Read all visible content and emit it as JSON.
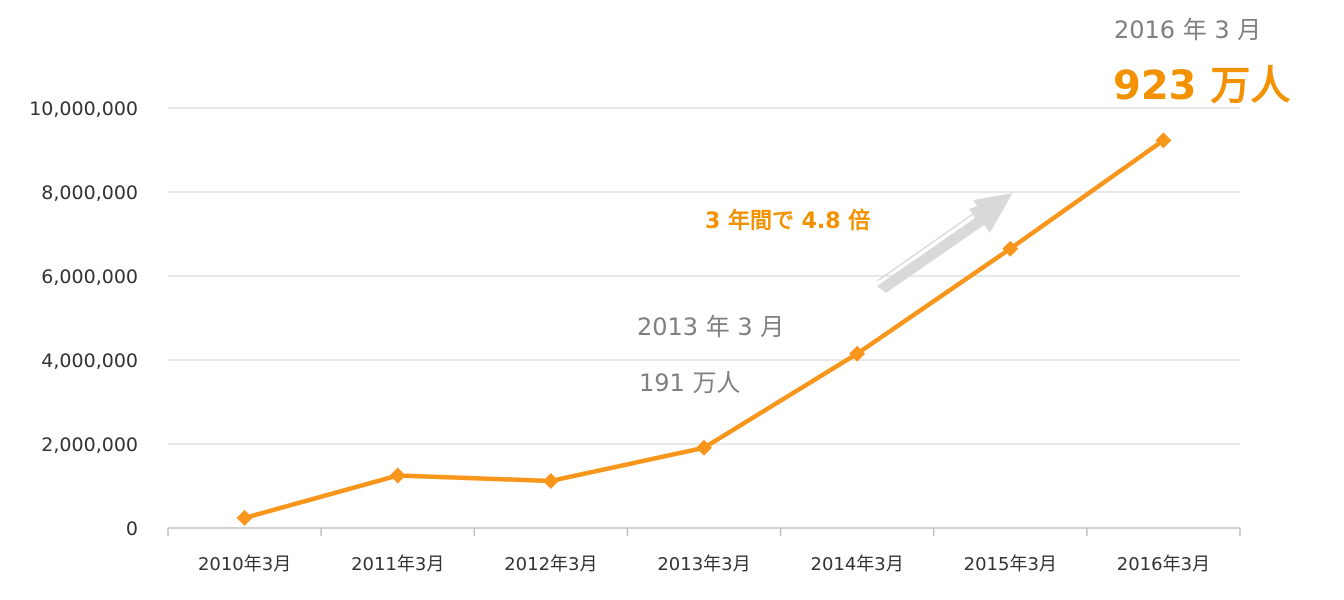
{
  "colors": {
    "line": "#F7961B",
    "accent_text": "#F39200",
    "gray_text": "#808080",
    "arrow": "#D9D9D9",
    "grid": "#D9D9D9"
  },
  "annotations": {
    "growth": "3 年間で 4.8 倍",
    "start_date": "2013 年 3 月",
    "start_value": "191 万人",
    "end_date": "2016 年 3 月",
    "end_value": "923 万人"
  },
  "chart_data": {
    "type": "line",
    "categories": [
      "2010年3月",
      "2011年3月",
      "2012年3月",
      "2013年3月",
      "2014年3月",
      "2015年3月",
      "2016年3月"
    ],
    "series": [
      {
        "values": [
          240000,
          1250000,
          1120000,
          1910000,
          4150000,
          6650000,
          9230000
        ]
      }
    ],
    "y_ticks": [
      "0",
      "2,000,000",
      "4,000,000",
      "6,000,000",
      "8,000,000",
      "10,000,000"
    ],
    "ylim": [
      0,
      10000000
    ],
    "grid": true,
    "marker": "diamond"
  }
}
